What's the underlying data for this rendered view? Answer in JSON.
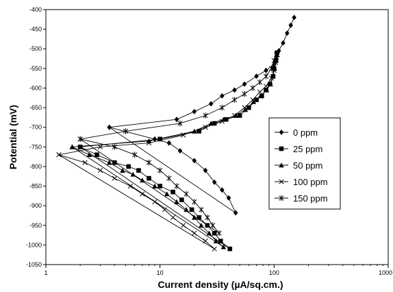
{
  "chart_data": {
    "type": "line",
    "title": "",
    "xlabel": "Current density (µA/sq.cm.)",
    "ylabel": "Potential (mV)",
    "xscale": "log",
    "xlim": [
      1,
      1000
    ],
    "ylim": [
      -1050,
      -400
    ],
    "x_ticks": [
      1,
      10,
      100,
      1000
    ],
    "x_tick_labels": [
      "1",
      "10",
      "100",
      "1000"
    ],
    "y_ticks": [
      -400,
      -450,
      -500,
      -550,
      -600,
      -650,
      -700,
      -750,
      -800,
      -850,
      -900,
      -950,
      -1000,
      -1050
    ],
    "y_tick_labels": [
      "-400",
      "-450",
      "-500",
      "-550",
      "-600",
      "-650",
      "-700",
      "-750",
      "-800",
      "-850",
      "-900",
      "-950",
      "-1000",
      "-1050"
    ],
    "grid": false,
    "legend_position": "right",
    "series": [
      {
        "name": "0 ppm",
        "marker": "diamond",
        "color": "#000000",
        "points": [
          [
            3.6,
            -700
          ],
          [
            9,
            -730
          ],
          [
            12,
            -740
          ],
          [
            15,
            -760
          ],
          [
            20,
            -785
          ],
          [
            25,
            -810
          ],
          [
            30,
            -840
          ],
          [
            35,
            -860
          ],
          [
            40,
            -880
          ],
          [
            46,
            -918
          ],
          [
            3.6,
            -700
          ],
          [
            14,
            -680
          ],
          [
            20,
            -660
          ],
          [
            28,
            -640
          ],
          [
            35,
            -620
          ],
          [
            45,
            -605
          ],
          [
            55,
            -590
          ],
          [
            70,
            -570
          ],
          [
            85,
            -555
          ],
          [
            100,
            -540
          ],
          [
            105,
            -525
          ],
          [
            110,
            -505
          ],
          [
            120,
            -485
          ],
          [
            130,
            -460
          ],
          [
            140,
            -440
          ],
          [
            150,
            -420
          ]
        ]
      },
      {
        "name": "25 ppm",
        "marker": "square",
        "color": "#000000",
        "points": [
          [
            2.0,
            -750
          ],
          [
            2.8,
            -770
          ],
          [
            4,
            -790
          ],
          [
            5.3,
            -800
          ],
          [
            6.5,
            -810
          ],
          [
            8,
            -830
          ],
          [
            10,
            -850
          ],
          [
            13,
            -865
          ],
          [
            15.5,
            -885
          ],
          [
            19,
            -910
          ],
          [
            22,
            -930
          ],
          [
            26,
            -950
          ],
          [
            30,
            -970
          ],
          [
            34,
            -990
          ],
          [
            41,
            -1010
          ],
          [
            2.0,
            -750
          ],
          [
            10,
            -730
          ],
          [
            22,
            -710
          ],
          [
            30,
            -690
          ],
          [
            38,
            -680
          ],
          [
            50,
            -670
          ],
          [
            60,
            -650
          ],
          [
            70,
            -630
          ],
          [
            78,
            -620
          ],
          [
            85,
            -605
          ],
          [
            92,
            -590
          ],
          [
            98,
            -570
          ],
          [
            100,
            -550
          ],
          [
            104,
            -530
          ],
          [
            106,
            -510
          ]
        ]
      },
      {
        "name": "50 ppm",
        "marker": "triangle",
        "color": "#000000",
        "points": [
          [
            1.7,
            -750
          ],
          [
            2.4,
            -770
          ],
          [
            3.6,
            -790
          ],
          [
            4.7,
            -810
          ],
          [
            5.8,
            -820
          ],
          [
            7,
            -835
          ],
          [
            9,
            -850
          ],
          [
            11.5,
            -870
          ],
          [
            14,
            -890
          ],
          [
            17,
            -910
          ],
          [
            20,
            -930
          ],
          [
            23,
            -950
          ],
          [
            27,
            -970
          ],
          [
            31,
            -990
          ],
          [
            36,
            -1005
          ],
          [
            1.7,
            -750
          ],
          [
            8,
            -735
          ],
          [
            20,
            -710
          ],
          [
            28,
            -690
          ],
          [
            36,
            -680
          ],
          [
            46,
            -670
          ],
          [
            56,
            -655
          ],
          [
            66,
            -635
          ],
          [
            76,
            -620
          ],
          [
            86,
            -605
          ],
          [
            93,
            -590
          ],
          [
            98,
            -570
          ],
          [
            101,
            -550
          ],
          [
            103,
            -530
          ],
          [
            105,
            -515
          ]
        ]
      },
      {
        "name": "100 ppm",
        "marker": "x",
        "color": "#000000",
        "points": [
          [
            1.3,
            -770
          ],
          [
            2.2,
            -790
          ],
          [
            3,
            -810
          ],
          [
            4,
            -830
          ],
          [
            5.5,
            -850
          ],
          [
            7,
            -870
          ],
          [
            9,
            -890
          ],
          [
            11,
            -910
          ],
          [
            13,
            -930
          ],
          [
            16,
            -950
          ],
          [
            20,
            -970
          ],
          [
            25,
            -990
          ],
          [
            30,
            -1010
          ],
          [
            1.3,
            -770
          ],
          [
            3,
            -750
          ],
          [
            8,
            -740
          ],
          [
            16,
            -720
          ],
          [
            25,
            -700
          ],
          [
            35,
            -685
          ],
          [
            45,
            -670
          ],
          [
            55,
            -650
          ],
          [
            65,
            -630
          ],
          [
            75,
            -610
          ],
          [
            85,
            -595
          ],
          [
            95,
            -575
          ],
          [
            100,
            -555
          ],
          [
            103,
            -535
          ],
          [
            107,
            -515
          ]
        ]
      },
      {
        "name": "150 ppm",
        "marker": "star",
        "color": "#000000",
        "points": [
          [
            2.0,
            -730
          ],
          [
            4,
            -750
          ],
          [
            6,
            -770
          ],
          [
            8,
            -790
          ],
          [
            10,
            -810
          ],
          [
            12,
            -830
          ],
          [
            14,
            -850
          ],
          [
            17,
            -870
          ],
          [
            20,
            -890
          ],
          [
            23,
            -910
          ],
          [
            26,
            -930
          ],
          [
            29,
            -950
          ],
          [
            33,
            -970
          ],
          [
            2.0,
            -730
          ],
          [
            5,
            -710
          ],
          [
            15,
            -690
          ],
          [
            25,
            -670
          ],
          [
            35,
            -650
          ],
          [
            45,
            -630
          ],
          [
            55,
            -615
          ],
          [
            65,
            -600
          ],
          [
            75,
            -585
          ],
          [
            85,
            -570
          ],
          [
            95,
            -550
          ],
          [
            100,
            -530
          ],
          [
            105,
            -515
          ]
        ]
      }
    ]
  }
}
